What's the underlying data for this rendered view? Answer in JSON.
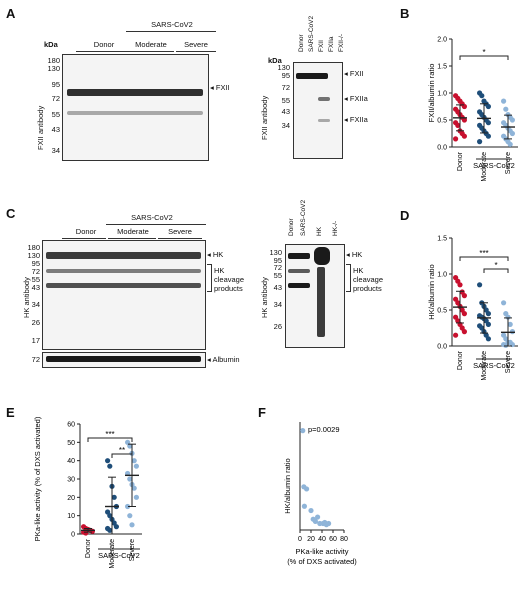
{
  "panels": {
    "A": {
      "letter": "A",
      "left_blot": {
        "kda_label": "kDa",
        "markers": [
          "180",
          "130",
          "95",
          "72",
          "55",
          "43",
          "34"
        ],
        "groups": {
          "donor": "Donor",
          "sars": "SARS-CoV2",
          "moderate": "Moderate",
          "severe": "Severe"
        },
        "y_label": "FXII antibody",
        "arrow_label": "FXII"
      },
      "right_blot": {
        "kda_label": "kDa",
        "markers": [
          "130",
          "95",
          "72",
          "55",
          "43",
          "34"
        ],
        "lanes": [
          "Donor",
          "SARS-CoV2",
          "FXII",
          "FXIIa",
          "FXII-/-"
        ],
        "y_label": "FXII antibody",
        "arrows": [
          "FXII",
          "FXIIa",
          "FXIIa"
        ]
      }
    },
    "C": {
      "letter": "C",
      "left_blot": {
        "markers": [
          "180",
          "130",
          "95",
          "72",
          "55",
          "43",
          "34",
          "26",
          "17"
        ],
        "groups": {
          "donor": "Donor",
          "sars": "SARS-CoV2",
          "moderate": "Moderate",
          "severe": "Severe"
        },
        "y_label": "HK antibody",
        "arrow_label": "HK",
        "bracket_label": [
          "HK",
          "cleavage",
          "products"
        ],
        "albumin_marker": "72",
        "albumin_label": "Albumin"
      },
      "right_blot": {
        "markers": [
          "130",
          "95",
          "72",
          "55",
          "43",
          "34",
          "26"
        ],
        "lanes": [
          "Donor",
          "SARS-CoV2",
          "HK",
          "HK-/-"
        ],
        "y_label": "HK antibody",
        "arrow_label": "HK",
        "bracket_label": [
          "HK",
          "cleavage",
          "products"
        ]
      }
    },
    "B": {
      "letter": "B"
    },
    "D": {
      "letter": "D"
    },
    "E": {
      "letter": "E"
    },
    "F": {
      "letter": "F"
    }
  },
  "chart_data": [
    {
      "id": "B",
      "type": "scatter",
      "ylabel": "FXII/albumin ratio",
      "ylim": [
        0,
        2.0
      ],
      "yticks": [
        "0.0",
        "0.5",
        "1.0",
        "1.5",
        "2.0"
      ],
      "categories": [
        "Donor",
        "Moderate",
        "Severe"
      ],
      "group_label": "SARS-CoV2",
      "significance": [
        "*"
      ],
      "colors": [
        "#c8102e",
        "#1f4e79",
        "#8fb4d8"
      ],
      "means": [
        0.54,
        0.53,
        0.37
      ],
      "sd": [
        0.24,
        0.27,
        0.22
      ],
      "values": [
        [
          0.95,
          0.9,
          0.85,
          0.8,
          0.75,
          0.7,
          0.65,
          0.6,
          0.55,
          0.5,
          0.45,
          0.4,
          0.3,
          0.25,
          0.2,
          0.15
        ],
        [
          1.0,
          0.95,
          0.85,
          0.8,
          0.75,
          0.65,
          0.6,
          0.55,
          0.5,
          0.45,
          0.4,
          0.35,
          0.3,
          0.25,
          0.2,
          0.1
        ],
        [
          0.85,
          0.7,
          0.6,
          0.55,
          0.5,
          0.45,
          0.4,
          0.35,
          0.3,
          0.25,
          0.2,
          0.15,
          0.1,
          0.05
        ]
      ]
    },
    {
      "id": "D",
      "type": "scatter",
      "ylabel": "HK/albumin ratio",
      "ylim": [
        0,
        1.5
      ],
      "yticks": [
        "0.0",
        "0.5",
        "1.0",
        "1.5"
      ],
      "categories": [
        "Donor",
        "Moderate",
        "Severe"
      ],
      "group_label": "SARS-CoV2",
      "significance": [
        "***",
        "*"
      ],
      "colors": [
        "#c8102e",
        "#1f4e79",
        "#8fb4d8"
      ],
      "means": [
        0.54,
        0.39,
        0.19
      ],
      "sd": [
        0.22,
        0.21,
        0.2
      ],
      "values": [
        [
          0.95,
          0.9,
          0.85,
          0.75,
          0.7,
          0.65,
          0.6,
          0.55,
          0.5,
          0.45,
          0.4,
          0.35,
          0.3,
          0.25,
          0.2,
          0.15
        ],
        [
          0.85,
          0.6,
          0.55,
          0.5,
          0.45,
          0.42,
          0.4,
          0.38,
          0.35,
          0.3,
          0.28,
          0.25,
          0.2,
          0.15,
          0.1
        ],
        [
          0.6,
          0.45,
          0.4,
          0.3,
          0.2,
          0.15,
          0.1,
          0.05,
          0.05,
          0.02,
          0.02,
          0.01
        ]
      ]
    },
    {
      "id": "E",
      "type": "scatter",
      "ylabel": "PKa-like activity (% of DXS activated)",
      "ylim": [
        0,
        60
      ],
      "yticks": [
        "0",
        "10",
        "20",
        "30",
        "40",
        "50",
        "60"
      ],
      "categories": [
        "Donor",
        "Moderate",
        "Severe"
      ],
      "group_label": "SARS-CoV2",
      "significance": [
        "***",
        "**"
      ],
      "colors": [
        "#c8102e",
        "#1f4e79",
        "#8fb4d8"
      ],
      "means": [
        2,
        15,
        32
      ],
      "sd": [
        1,
        16,
        17
      ],
      "values": [
        [
          4,
          3,
          2.5,
          2,
          1.5,
          1,
          0.5
        ],
        [
          40,
          37,
          26,
          20,
          15,
          12,
          10,
          8,
          6,
          4,
          3,
          2
        ],
        [
          50,
          48,
          44,
          40,
          37,
          33,
          30,
          27,
          25,
          20,
          15,
          10,
          5
        ]
      ]
    },
    {
      "id": "F",
      "type": "scatter",
      "xlabel": "PKa-like activity\n(% of DXS activated)",
      "ylabel": "HK/albumin ratio",
      "xlim": [
        0,
        80
      ],
      "ylim": [
        0,
        1.0
      ],
      "xticks": [
        "0",
        "20",
        "40",
        "60",
        "80"
      ],
      "annotation": "p=0.0029",
      "color": "#8fb4d8",
      "x": [
        5,
        7,
        12,
        8,
        20,
        24,
        28,
        32,
        36,
        42,
        45,
        48,
        52
      ],
      "y": [
        0.92,
        0.4,
        0.38,
        0.22,
        0.18,
        0.1,
        0.08,
        0.12,
        0.06,
        0.06,
        0.07,
        0.05,
        0.06
      ]
    }
  ]
}
